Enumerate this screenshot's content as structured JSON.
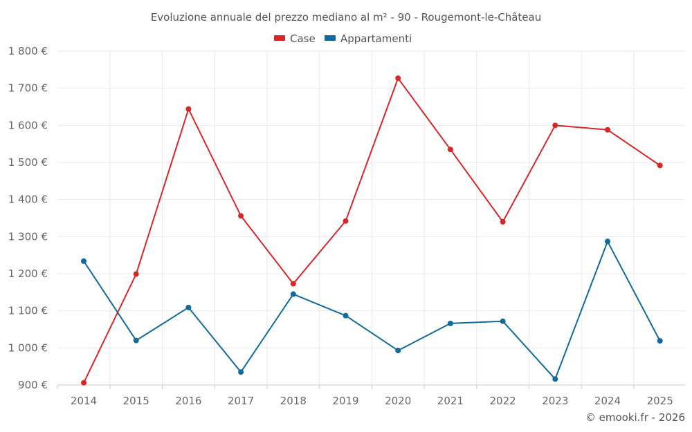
{
  "chart_data": {
    "type": "line",
    "title": "Evoluzione annuale del prezzo mediano al m² - 90 - Rougemont-le-Château",
    "categories": [
      "2014",
      "2015",
      "2016",
      "2017",
      "2018",
      "2019",
      "2020",
      "2021",
      "2022",
      "2023",
      "2024",
      "2025"
    ],
    "series": [
      {
        "name": "Case",
        "color": "#d62728",
        "values": [
          906,
          1199,
          1644,
          1356,
          1173,
          1342,
          1727,
          1535,
          1340,
          1600,
          1588,
          1492
        ]
      },
      {
        "name": "Appartamenti",
        "color": "#106a9c",
        "values": [
          1234,
          1020,
          1109,
          935,
          1145,
          1087,
          993,
          1066,
          1072,
          916,
          1287,
          1019
        ]
      }
    ],
    "ylim": [
      900,
      1800
    ],
    "yticks": [
      900,
      1000,
      1100,
      1200,
      1300,
      1400,
      1500,
      1600,
      1700,
      1800
    ],
    "ytick_labels": [
      "900 €",
      "1 000 €",
      "1 100 €",
      "1 200 €",
      "1 300 €",
      "1 400 €",
      "1 500 €",
      "1 600 €",
      "1 700 €",
      "1 800 €"
    ],
    "xlabel": "",
    "ylabel": "",
    "grid": true,
    "legend_position": "top-center"
  },
  "credit": "© emooki.fr - 2026"
}
